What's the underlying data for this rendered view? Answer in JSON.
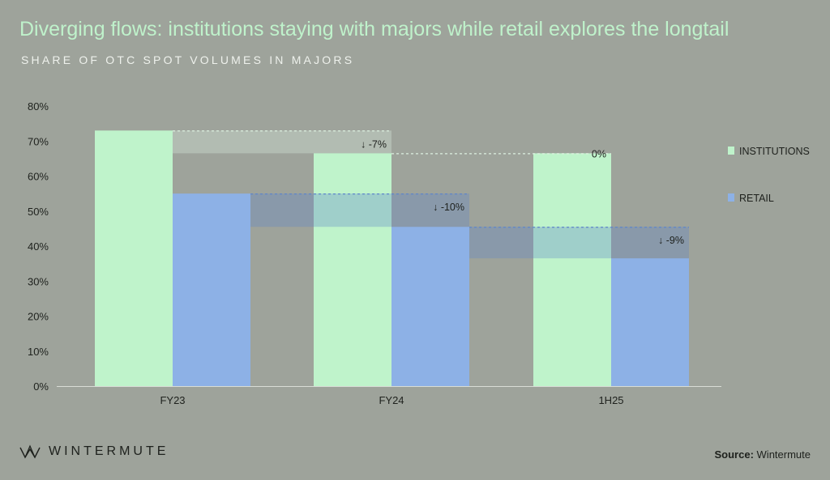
{
  "header": {
    "title": "Diverging flows: institutions staying with majors while retail explores the longtail",
    "subtitle": "SHARE OF OTC SPOT VOLUMES IN MAJORS"
  },
  "footer": {
    "brand": "WINTERMUTE",
    "brand_icon": "wintermute-logo-icon",
    "source_label": "Source:",
    "source_value": "Wintermute"
  },
  "colors": {
    "background": "#9ea39b",
    "institutions": "#bff3cb",
    "retail": "#8db1e6",
    "title": "#bff2cb"
  },
  "chart_data": {
    "type": "bar",
    "categories": [
      "FY23",
      "FY24",
      "1H25"
    ],
    "series": [
      {
        "name": "INSTITUTIONS",
        "values": [
          73,
          66.5,
          66.5
        ]
      },
      {
        "name": "RETAIL",
        "values": [
          55,
          45.5,
          36.5
        ]
      }
    ],
    "annotations": [
      {
        "series": "INSTITUTIONS",
        "from": "FY23",
        "to": "FY24",
        "label": "↓ -7%"
      },
      {
        "series": "INSTITUTIONS",
        "from": "FY24",
        "to": "1H25",
        "label": "0%"
      },
      {
        "series": "RETAIL",
        "from": "FY23",
        "to": "FY24",
        "label": "↓ -10%"
      },
      {
        "series": "RETAIL",
        "from": "FY24",
        "to": "1H25",
        "label": "↓ -9%"
      }
    ],
    "ylim": [
      0,
      80
    ],
    "yticks": [
      "0%",
      "10%",
      "20%",
      "30%",
      "40%",
      "50%",
      "60%",
      "70%",
      "80%"
    ],
    "xlabel": "",
    "ylabel": "",
    "grid": false,
    "legend": "right"
  }
}
